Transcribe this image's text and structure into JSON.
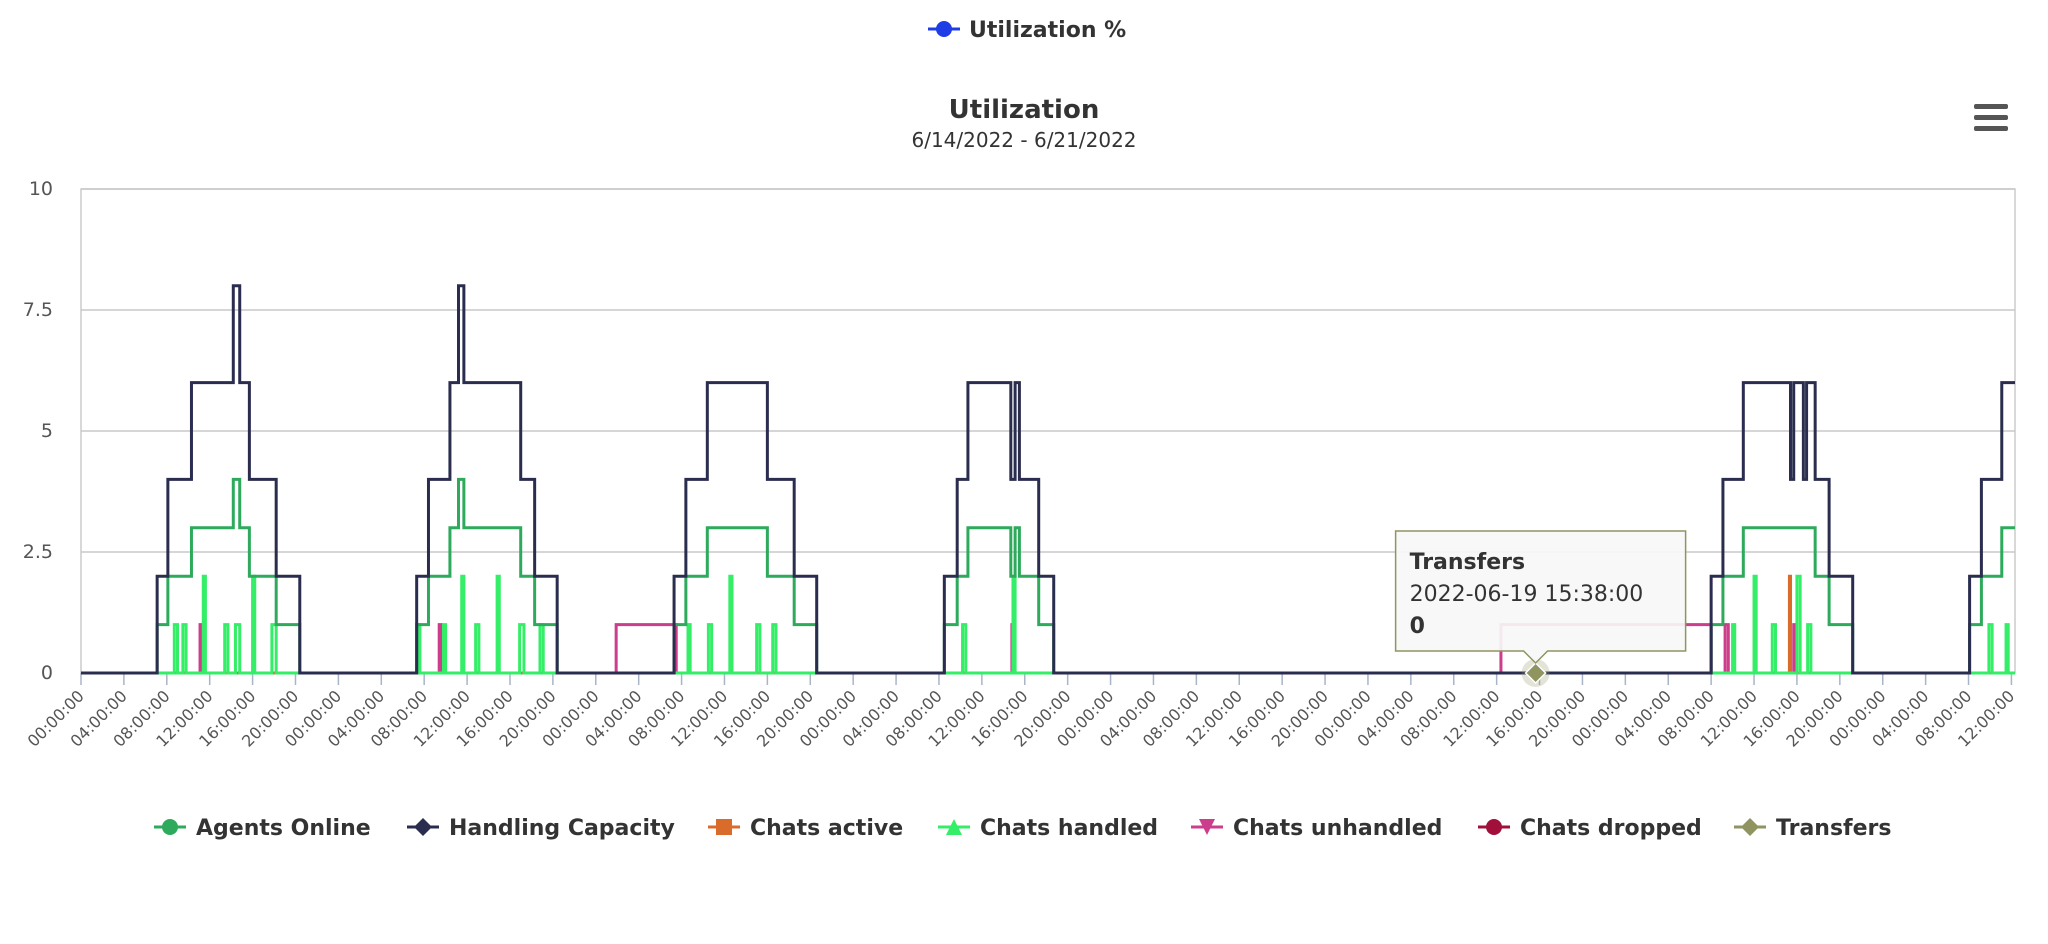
{
  "chart_data": {
    "type": "step-line",
    "title": "Utilization",
    "subtitle": "6/14/2022 - 6/21/2022",
    "extra_legend": {
      "name": "Utilization %",
      "color": "#1f3de6"
    },
    "xlim": [
      "2022-06-14 00:00:00",
      "2022-06-21 12:20:00"
    ],
    "ylim": [
      0,
      10
    ],
    "yticks": [
      0,
      2.5,
      5,
      7.5,
      10
    ],
    "grid": true,
    "xticks": [
      {
        "value": "2022-06-14 00:00:00",
        "label": "00:00:00"
      },
      {
        "value": "2022-06-14 04:00:00",
        "label": "04:00:00"
      },
      {
        "value": "2022-06-14 08:00:00",
        "label": "08:00:00"
      },
      {
        "value": "2022-06-14 12:00:00",
        "label": "12:00:00"
      },
      {
        "value": "2022-06-14 16:00:00",
        "label": "16:00:00"
      },
      {
        "value": "2022-06-14 20:00:00",
        "label": "20:00:00"
      },
      {
        "value": "2022-06-15 00:00:00",
        "label": "00:00:00"
      },
      {
        "value": "2022-06-15 04:00:00",
        "label": "04:00:00"
      },
      {
        "value": "2022-06-15 08:00:00",
        "label": "08:00:00"
      },
      {
        "value": "2022-06-15 12:00:00",
        "label": "12:00:00"
      },
      {
        "value": "2022-06-15 16:00:00",
        "label": "16:00:00"
      },
      {
        "value": "2022-06-15 20:00:00",
        "label": "20:00:00"
      },
      {
        "value": "2022-06-16 00:00:00",
        "label": "00:00:00"
      },
      {
        "value": "2022-06-16 04:00:00",
        "label": "04:00:00"
      },
      {
        "value": "2022-06-16 08:00:00",
        "label": "08:00:00"
      },
      {
        "value": "2022-06-16 12:00:00",
        "label": "12:00:00"
      },
      {
        "value": "2022-06-16 16:00:00",
        "label": "16:00:00"
      },
      {
        "value": "2022-06-16 20:00:00",
        "label": "20:00:00"
      },
      {
        "value": "2022-06-17 00:00:00",
        "label": "00:00:00"
      },
      {
        "value": "2022-06-17 04:00:00",
        "label": "04:00:00"
      },
      {
        "value": "2022-06-17 08:00:00",
        "label": "08:00:00"
      },
      {
        "value": "2022-06-17 12:00:00",
        "label": "12:00:00"
      },
      {
        "value": "2022-06-17 16:00:00",
        "label": "16:00:00"
      },
      {
        "value": "2022-06-17 20:00:00",
        "label": "20:00:00"
      },
      {
        "value": "2022-06-18 00:00:00",
        "label": "00:00:00"
      },
      {
        "value": "2022-06-18 04:00:00",
        "label": "04:00:00"
      },
      {
        "value": "2022-06-18 08:00:00",
        "label": "08:00:00"
      },
      {
        "value": "2022-06-18 12:00:00",
        "label": "12:00:00"
      },
      {
        "value": "2022-06-18 16:00:00",
        "label": "16:00:00"
      },
      {
        "value": "2022-06-18 20:00:00",
        "label": "20:00:00"
      },
      {
        "value": "2022-06-19 00:00:00",
        "label": "00:00:00"
      },
      {
        "value": "2022-06-19 04:00:00",
        "label": "04:00:00"
      },
      {
        "value": "2022-06-19 08:00:00",
        "label": "08:00:00"
      },
      {
        "value": "2022-06-19 12:00:00",
        "label": "12:00:00"
      },
      {
        "value": "2022-06-19 16:00:00",
        "label": "16:00:00"
      },
      {
        "value": "2022-06-19 20:00:00",
        "label": "20:00:00"
      },
      {
        "value": "2022-06-20 00:00:00",
        "label": "00:00:00"
      },
      {
        "value": "2022-06-20 04:00:00",
        "label": "04:00:00"
      },
      {
        "value": "2022-06-20 08:00:00",
        "label": "08:00:00"
      },
      {
        "value": "2022-06-20 12:00:00",
        "label": "12:00:00"
      },
      {
        "value": "2022-06-20 16:00:00",
        "label": "16:00:00"
      },
      {
        "value": "2022-06-20 20:00:00",
        "label": "20:00:00"
      },
      {
        "value": "2022-06-21 00:00:00",
        "label": "00:00:00"
      },
      {
        "value": "2022-06-21 04:00:00",
        "label": "04:00:00"
      },
      {
        "value": "2022-06-21 08:00:00",
        "label": "08:00:00"
      },
      {
        "value": "2022-06-21 12:00:00",
        "label": "12:00:00"
      }
    ],
    "series": [
      {
        "name": "Agents Online",
        "color": "#2eaa5c",
        "marker": "circle",
        "x": [
          "2022-06-14 00:00:00",
          "2022-06-14 07:06:00",
          "2022-06-14 08:06:00",
          "2022-06-14 10:18:00",
          "2022-06-14 14:12:00",
          "2022-06-14 14:48:00",
          "2022-06-14 15:42:00",
          "2022-06-14 18:12:00",
          "2022-06-14 20:24:00",
          "2022-06-15 07:18:00",
          "2022-06-15 08:24:00",
          "2022-06-15 10:24:00",
          "2022-06-15 11:12:00",
          "2022-06-15 11:42:00",
          "2022-06-15 17:00:00",
          "2022-06-15 18:18:00",
          "2022-06-15 20:24:00",
          "2022-06-16 07:18:00",
          "2022-06-16 08:24:00",
          "2022-06-16 10:24:00",
          "2022-06-16 16:00:00",
          "2022-06-16 18:30:00",
          "2022-06-16 20:36:00",
          "2022-06-17 08:30:00",
          "2022-06-17 09:42:00",
          "2022-06-17 10:42:00",
          "2022-06-17 14:42:00",
          "2022-06-17 15:06:00",
          "2022-06-17 15:30:00",
          "2022-06-17 17:18:00",
          "2022-06-17 18:42:00",
          "2022-06-20 08:00:00",
          "2022-06-20 09:06:00",
          "2022-06-20 11:00:00",
          "2022-06-20 17:42:00",
          "2022-06-20 19:00:00",
          "2022-06-20 21:12:00",
          "2022-06-21 08:06:00",
          "2022-06-21 09:12:00",
          "2022-06-21 11:06:00"
        ],
        "values": [
          0,
          1,
          2,
          3,
          4,
          3,
          2,
          1,
          0,
          1,
          2,
          3,
          4,
          3,
          2,
          1,
          0,
          1,
          2,
          3,
          2,
          1,
          0,
          1,
          2,
          3,
          2,
          3,
          2,
          1,
          0,
          1,
          2,
          3,
          2,
          1,
          0,
          1,
          2,
          3
        ]
      },
      {
        "name": "Handling Capacity",
        "color": "#2b2d4f",
        "marker": "diamond",
        "x": [
          "2022-06-14 00:00:00",
          "2022-06-14 07:06:00",
          "2022-06-14 08:06:00",
          "2022-06-14 10:18:00",
          "2022-06-14 14:12:00",
          "2022-06-14 14:48:00",
          "2022-06-14 15:42:00",
          "2022-06-14 18:12:00",
          "2022-06-14 20:24:00",
          "2022-06-15 07:18:00",
          "2022-06-15 08:24:00",
          "2022-06-15 10:24:00",
          "2022-06-15 11:12:00",
          "2022-06-15 11:42:00",
          "2022-06-15 17:00:00",
          "2022-06-15 18:18:00",
          "2022-06-15 20:24:00",
          "2022-06-16 07:18:00",
          "2022-06-16 08:24:00",
          "2022-06-16 10:24:00",
          "2022-06-16 16:00:00",
          "2022-06-16 18:30:00",
          "2022-06-16 20:36:00",
          "2022-06-17 08:30:00",
          "2022-06-17 09:42:00",
          "2022-06-17 10:42:00",
          "2022-06-17 14:42:00",
          "2022-06-17 15:06:00",
          "2022-06-17 15:30:00",
          "2022-06-17 17:18:00",
          "2022-06-17 18:42:00",
          "2022-06-20 08:00:00",
          "2022-06-20 09:06:00",
          "2022-06-20 11:00:00",
          "2022-06-20 15:24:00",
          "2022-06-20 15:42:00",
          "2022-06-20 16:36:00",
          "2022-06-20 16:54:00",
          "2022-06-20 17:42:00",
          "2022-06-20 19:00:00",
          "2022-06-20 21:12:00",
          "2022-06-21 08:06:00",
          "2022-06-21 09:12:00",
          "2022-06-21 11:06:00"
        ],
        "values": [
          0,
          2,
          4,
          6,
          8,
          6,
          4,
          2,
          0,
          2,
          4,
          6,
          8,
          6,
          4,
          2,
          0,
          2,
          4,
          6,
          4,
          2,
          0,
          2,
          4,
          6,
          4,
          6,
          4,
          2,
          0,
          2,
          4,
          6,
          4,
          6,
          4,
          6,
          4,
          2,
          0,
          2,
          4,
          6
        ]
      },
      {
        "name": "Chats active",
        "color": "#d96b2b",
        "marker": "square",
        "x": [
          "2022-06-14 00:00:00",
          "2022-06-20 15:18:00",
          "2022-06-20 15:24:00"
        ],
        "values": [
          0,
          2,
          0
        ]
      },
      {
        "name": "Chats handled",
        "color": "#33ee66",
        "marker": "triangle",
        "x": [
          "2022-06-14 00:00:00",
          "2022-06-14 08:42:00",
          "2022-06-14 09:00:00",
          "2022-06-14 09:30:00",
          "2022-06-14 09:48:00",
          "2022-06-14 11:24:00",
          "2022-06-14 11:36:00",
          "2022-06-14 13:24:00",
          "2022-06-14 13:42:00",
          "2022-06-14 14:24:00",
          "2022-06-14 14:48:00",
          "2022-06-14 16:00:00",
          "2022-06-14 16:12:00",
          "2022-06-14 17:48:00",
          "2022-06-14 18:12:00",
          "2022-06-15 07:24:00",
          "2022-06-15 07:36:00",
          "2022-06-15 09:48:00",
          "2022-06-15 10:00:00",
          "2022-06-15 11:30:00",
          "2022-06-15 11:42:00",
          "2022-06-15 12:48:00",
          "2022-06-15 13:06:00",
          "2022-06-15 14:48:00",
          "2022-06-15 15:00:00",
          "2022-06-15 16:54:00",
          "2022-06-15 17:18:00",
          "2022-06-15 18:48:00",
          "2022-06-15 19:06:00",
          "2022-06-16 08:36:00",
          "2022-06-16 08:48:00",
          "2022-06-16 10:30:00",
          "2022-06-16 10:48:00",
          "2022-06-16 12:30:00",
          "2022-06-16 12:42:00",
          "2022-06-16 15:00:00",
          "2022-06-16 15:18:00",
          "2022-06-16 16:30:00",
          "2022-06-16 16:48:00",
          "2022-06-17 10:12:00",
          "2022-06-17 10:30:00",
          "2022-06-17 14:54:00",
          "2022-06-17 15:06:00",
          "2022-06-20 10:00:00",
          "2022-06-20 10:12:00",
          "2022-06-20 12:00:00",
          "2022-06-20 12:12:00",
          "2022-06-20 13:42:00",
          "2022-06-20 14:00:00",
          "2022-06-20 16:00:00",
          "2022-06-20 16:18:00",
          "2022-06-20 17:00:00",
          "2022-06-20 17:18:00",
          "2022-06-21 09:54:00",
          "2022-06-21 10:12:00",
          "2022-06-21 11:30:00",
          "2022-06-21 11:42:00"
        ],
        "values": [
          0,
          1,
          0,
          1,
          0,
          2,
          0,
          1,
          0,
          1,
          0,
          2,
          0,
          1,
          0,
          1,
          0,
          1,
          0,
          2,
          0,
          1,
          0,
          2,
          0,
          1,
          0,
          1,
          0,
          1,
          0,
          1,
          0,
          2,
          0,
          1,
          0,
          1,
          0,
          1,
          0,
          2,
          0,
          1,
          0,
          2,
          0,
          1,
          0,
          2,
          0,
          1,
          0,
          1,
          0,
          1,
          0
        ]
      },
      {
        "name": "Chats unhandled",
        "color": "#cc3d8b",
        "marker": "triangle-down",
        "x": [
          "2022-06-14 00:00:00",
          "2022-06-14 11:06:00",
          "2022-06-14 11:18:00",
          "2022-06-15 09:24:00",
          "2022-06-15 09:36:00",
          "2022-06-16 01:54:00",
          "2022-06-16 07:30:00",
          "2022-06-17 14:48:00",
          "2022-06-17 15:00:00",
          "2022-06-19 12:24:00",
          "2022-06-20 08:00:00",
          "2022-06-20 09:18:00",
          "2022-06-20 09:36:00",
          "2022-06-20 15:42:00",
          "2022-06-20 15:54:00"
        ],
        "values": [
          0,
          1,
          0,
          1,
          0,
          1,
          0,
          1,
          0,
          1,
          0,
          1,
          0,
          1,
          0
        ]
      },
      {
        "name": "Chats dropped",
        "color": "#a0103b",
        "marker": "circle",
        "x": [
          "2022-06-14 00:00:00",
          "2022-06-21 12:00:00"
        ],
        "values": [
          0,
          0
        ]
      },
      {
        "name": "Transfers",
        "color": "#8f9460",
        "marker": "diamond",
        "x": [
          "2022-06-14 00:00:00",
          "2022-06-19 15:38:00",
          "2022-06-21 12:00:00"
        ],
        "values": [
          0,
          0,
          0
        ]
      }
    ],
    "tooltip": {
      "series": 6,
      "point": 1
    }
  }
}
